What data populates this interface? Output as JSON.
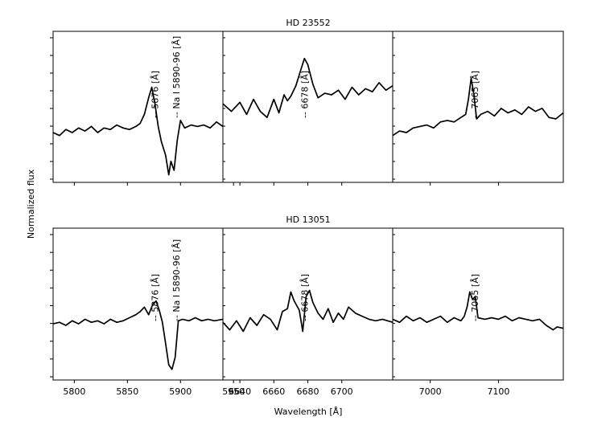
{
  "chart_data": {
    "type": "line",
    "ylabel": "Normalized flux",
    "xlabel": "Wavelength [Å]",
    "panels_x": [
      {
        "xlim": [
          5780,
          5940
        ],
        "ticks": [
          5800,
          5850,
          5900,
          5950
        ]
      },
      {
        "xlim": [
          6630,
          6730
        ],
        "ticks": [
          6640,
          6660,
          6680,
          6700
        ]
      },
      {
        "xlim": [
          6945,
          7195
        ],
        "ticks": [
          7000,
          7100
        ]
      }
    ],
    "rows": [
      {
        "title": "HD 23552",
        "ylim": [
          0.0,
          1.0
        ],
        "series": [
          {
            "x": [
              5780,
              5786,
              5792,
              5798,
              5804,
              5810,
              5816,
              5822,
              5828,
              5834,
              5840,
              5846,
              5852,
              5858,
              5862,
              5866,
              5870,
              5873,
              5876,
              5879,
              5882,
              5886,
              5889,
              5891,
              5894,
              5897,
              5900,
              5904,
              5910,
              5916,
              5922,
              5928,
              5934,
              5940
            ],
            "y": [
              0.33,
              0.31,
              0.35,
              0.33,
              0.36,
              0.34,
              0.37,
              0.33,
              0.36,
              0.35,
              0.38,
              0.36,
              0.35,
              0.37,
              0.39,
              0.45,
              0.56,
              0.63,
              0.52,
              0.37,
              0.27,
              0.18,
              0.05,
              0.14,
              0.08,
              0.28,
              0.41,
              0.36,
              0.38,
              0.37,
              0.38,
              0.36,
              0.4,
              0.37
            ]
          },
          {
            "x": [
              6630,
              6635,
              6640,
              6644,
              6648,
              6652,
              6656,
              6660,
              6663,
              6666,
              6668,
              6670,
              6673,
              6676,
              6678,
              6680,
              6683,
              6686,
              6690,
              6694,
              6698,
              6702,
              6706,
              6710,
              6714,
              6718,
              6722,
              6726,
              6730
            ],
            "y": [
              0.52,
              0.47,
              0.53,
              0.45,
              0.55,
              0.47,
              0.43,
              0.55,
              0.46,
              0.58,
              0.54,
              0.57,
              0.64,
              0.75,
              0.82,
              0.78,
              0.65,
              0.56,
              0.59,
              0.58,
              0.61,
              0.55,
              0.63,
              0.58,
              0.62,
              0.6,
              0.66,
              0.61,
              0.64
            ]
          },
          {
            "x": [
              6945,
              6955,
              6965,
              6975,
              6985,
              6995,
              7005,
              7015,
              7025,
              7035,
              7045,
              7052,
              7056,
              7060,
              7064,
              7068,
              7074,
              7084,
              7094,
              7104,
              7114,
              7124,
              7134,
              7144,
              7154,
              7164,
              7174,
              7184,
              7195
            ],
            "y": [
              0.31,
              0.34,
              0.33,
              0.36,
              0.37,
              0.38,
              0.36,
              0.4,
              0.41,
              0.4,
              0.43,
              0.45,
              0.55,
              0.69,
              0.58,
              0.42,
              0.45,
              0.47,
              0.44,
              0.49,
              0.46,
              0.48,
              0.45,
              0.5,
              0.47,
              0.49,
              0.43,
              0.42,
              0.46
            ]
          }
        ],
        "annotations": [
          {
            "panel": 0,
            "label": "-- 5876 [Å]",
            "x": 5876
          },
          {
            "panel": 0,
            "label": "-- Na I 5890-96 [Å]",
            "x": 5896
          },
          {
            "panel": 1,
            "label": "-- 6678 [Å]",
            "x": 6678
          },
          {
            "panel": 2,
            "label": "-- 7065 [Å]",
            "x": 7065
          }
        ]
      },
      {
        "title": "HD 13051",
        "ylim": [
          0.0,
          1.0
        ],
        "series": [
          {
            "x": [
              5780,
              5786,
              5792,
              5798,
              5804,
              5810,
              5816,
              5822,
              5828,
              5834,
              5840,
              5846,
              5852,
              5858,
              5862,
              5866,
              5870,
              5874,
              5877,
              5880,
              5883,
              5886,
              5889,
              5892,
              5895,
              5898,
              5902,
              5908,
              5914,
              5920,
              5926,
              5932,
              5940
            ],
            "y": [
              0.37,
              0.38,
              0.36,
              0.39,
              0.37,
              0.4,
              0.38,
              0.39,
              0.37,
              0.4,
              0.38,
              0.39,
              0.41,
              0.43,
              0.45,
              0.48,
              0.43,
              0.5,
              0.52,
              0.46,
              0.38,
              0.24,
              0.1,
              0.07,
              0.15,
              0.39,
              0.4,
              0.39,
              0.41,
              0.39,
              0.4,
              0.39,
              0.4
            ]
          },
          {
            "x": [
              6630,
              6634,
              6638,
              6642,
              6646,
              6650,
              6654,
              6658,
              6662,
              6665,
              6668,
              6670,
              6672,
              6675,
              6677,
              6679,
              6681,
              6683,
              6686,
              6689,
              6692,
              6695,
              6698,
              6701,
              6704,
              6708,
              6712,
              6716,
              6720,
              6724,
              6730
            ],
            "y": [
              0.38,
              0.33,
              0.39,
              0.32,
              0.41,
              0.36,
              0.43,
              0.4,
              0.33,
              0.45,
              0.47,
              0.58,
              0.52,
              0.46,
              0.32,
              0.55,
              0.59,
              0.51,
              0.44,
              0.4,
              0.47,
              0.38,
              0.44,
              0.4,
              0.48,
              0.44,
              0.42,
              0.4,
              0.39,
              0.4,
              0.38
            ]
          },
          {
            "x": [
              6945,
              6955,
              6965,
              6975,
              6985,
              6995,
              7005,
              7015,
              7025,
              7035,
              7045,
              7050,
              7054,
              7058,
              7062,
              7066,
              7070,
              7080,
              7090,
              7100,
              7110,
              7120,
              7130,
              7140,
              7150,
              7160,
              7170,
              7180,
              7186,
              7195
            ],
            "y": [
              0.4,
              0.38,
              0.42,
              0.39,
              0.41,
              0.38,
              0.4,
              0.42,
              0.38,
              0.41,
              0.39,
              0.42,
              0.48,
              0.58,
              0.53,
              0.55,
              0.41,
              0.4,
              0.41,
              0.4,
              0.42,
              0.39,
              0.41,
              0.4,
              0.39,
              0.4,
              0.36,
              0.33,
              0.35,
              0.34
            ]
          }
        ],
        "annotations": [
          {
            "panel": 0,
            "label": "-- 5876 [Å]",
            "x": 5876
          },
          {
            "panel": 0,
            "label": "-- Na I 5890-96 [Å]",
            "x": 5896
          },
          {
            "panel": 1,
            "label": "-- 6678 [Å]",
            "x": 6678
          },
          {
            "panel": 2,
            "label": "-- 7065 [Å]",
            "x": 7065
          }
        ]
      }
    ],
    "colors": {
      "line": "#000000",
      "axes": "#000000",
      "background": "#ffffff"
    }
  }
}
